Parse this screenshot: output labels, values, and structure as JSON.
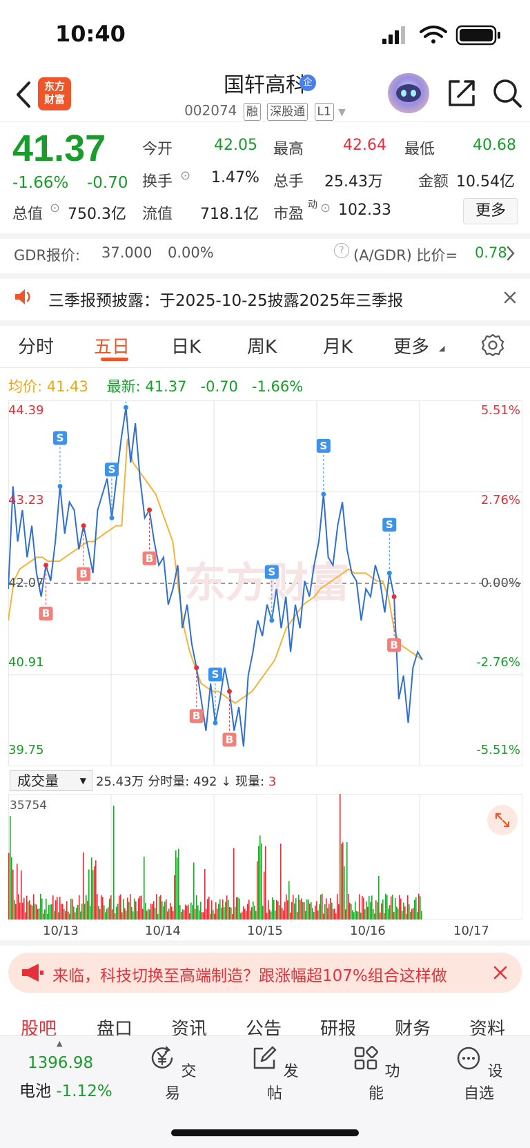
{
  "status": {
    "time": "10:40"
  },
  "header": {
    "logo_line1": "东方",
    "logo_line2": "财富",
    "stock_name": "国轩高科",
    "verify_badge": "企",
    "stock_code": "002074",
    "tags": [
      "融",
      "深股通",
      "L1"
    ]
  },
  "quote": {
    "price": "41.37",
    "change_pct": "-1.66%",
    "change_abs": "-0.70",
    "fields": [
      {
        "label": "今开",
        "value": "42.05",
        "color": "green"
      },
      {
        "label": "最高",
        "value": "42.64",
        "color": "red"
      },
      {
        "label": "最低",
        "value": "40.68",
        "color": "green"
      },
      {
        "label": "换手",
        "value": "1.47%",
        "color": "normal"
      },
      {
        "label": "总手",
        "value": "25.43万",
        "color": "normal"
      },
      {
        "label": "金额",
        "value": "10.54亿",
        "color": "normal"
      },
      {
        "label": "总值",
        "value": "750.3亿",
        "color": "normal"
      },
      {
        "label": "流值",
        "value": "718.1亿",
        "color": "normal"
      },
      {
        "label": "市盈",
        "value": "102.33",
        "color": "normal"
      }
    ],
    "pe_sup": "动",
    "more_label": "更多"
  },
  "gdr": {
    "label": "GDR报价:",
    "price": "37.000",
    "pct": "0.00%",
    "ratio_label": "(A/GDR) 比价=",
    "ratio_value": "0.78"
  },
  "notice": {
    "text": "三季报预披露：于2025-10-25披露2025年三季报"
  },
  "period_tabs": [
    "分时",
    "五日",
    "日K",
    "周K",
    "月K",
    "更多"
  ],
  "avg": {
    "avg_label": "均价:",
    "avg_value": "41.43",
    "latest_label": "最新:",
    "latest_value": "41.37",
    "latest_chg": "-0.70",
    "latest_pct": "-1.66%"
  },
  "chart_data": {
    "type": "line",
    "ylim": [
      39.75,
      44.39
    ],
    "y_ticks_left": [
      "44.39",
      "43.23",
      "42.07",
      "40.91",
      "39.75"
    ],
    "y_ticks_right": [
      "5.51%",
      "2.76%",
      "0.00%",
      "-2.76%",
      "-5.51%"
    ],
    "x_labels": [
      "10/13",
      "10/14",
      "10/15",
      "10/16",
      "10/17"
    ],
    "prev_close": 42.07,
    "series": [
      {
        "values": [
          42.0,
          43.3,
          42.6,
          43.0,
          42.4,
          42.8,
          42.2,
          41.9,
          42.3,
          42.1,
          42.6,
          43.3,
          42.7,
          43.1,
          43.0,
          42.5,
          42.8,
          42.5,
          42.2,
          43.0,
          43.2,
          43.4,
          42.9,
          43.4,
          43.9,
          44.3,
          43.6,
          44.1,
          43.4,
          42.9,
          43.0,
          42.6,
          42.3,
          42.4,
          41.8,
          42.0,
          42.3,
          41.5,
          41.8,
          41.3,
          41.0,
          40.6,
          40.2,
          40.8,
          40.3,
          40.6,
          41.0,
          40.7,
          40.2,
          40.5,
          40.0,
          40.9,
          41.2,
          41.6,
          41.4,
          41.8,
          41.6,
          42.0,
          41.5,
          41.9,
          41.2,
          41.8,
          41.5,
          42.1,
          41.9,
          42.3,
          42.6,
          43.2,
          42.4,
          42.3,
          42.8,
          43.1,
          42.5,
          42.2,
          42.1,
          41.6,
          42.0,
          41.9,
          42.3,
          42.1,
          41.7,
          42.2,
          41.9,
          40.6,
          40.9,
          40.3,
          41.0,
          41.2,
          41.1
        ]
      },
      {
        "values": [
          41.6,
          42.1,
          42.25,
          42.3,
          42.35,
          42.4,
          42.4,
          42.35,
          42.35,
          42.35,
          42.4,
          42.45,
          42.5,
          42.55,
          42.6,
          42.6,
          42.65,
          42.7,
          42.75,
          42.8,
          42.8,
          43.9,
          43.6,
          43.5,
          43.4,
          43.3,
          43.2,
          43.0,
          42.8,
          42.6,
          42.0,
          41.5,
          41.2,
          41.0,
          40.8,
          40.75,
          40.7,
          40.7,
          40.65,
          40.6,
          40.55,
          40.6,
          40.65,
          40.7,
          40.8,
          40.9,
          41.0,
          41.1,
          41.3,
          41.5,
          41.6,
          41.7,
          41.8,
          41.85,
          41.9,
          42.0,
          42.05,
          42.1,
          42.15,
          42.2,
          42.25,
          42.2,
          42.2,
          42.2,
          42.15,
          42.1,
          42.1,
          41.9,
          41.5,
          41.3,
          41.25,
          41.2,
          41.15,
          41.1
        ]
      }
    ],
    "volume_max_label": "35754",
    "volume_label": "成交量",
    "volume_info": [
      "25.43万",
      "分时量:",
      "492",
      "↓",
      "现量:",
      "3"
    ]
  },
  "banner": {
    "text": "来临，科技切换至高端制造？跟涨幅超107%组合这样做"
  },
  "section_tabs": [
    "股吧",
    "盘口",
    "资讯",
    "公告",
    "研报",
    "财务",
    "资料"
  ],
  "bottom_bar": {
    "index_value": "1396.98",
    "index_name": "电池",
    "index_pct": "-1.12%",
    "items": [
      "交易",
      "发帖",
      "功能",
      "设自选"
    ]
  }
}
